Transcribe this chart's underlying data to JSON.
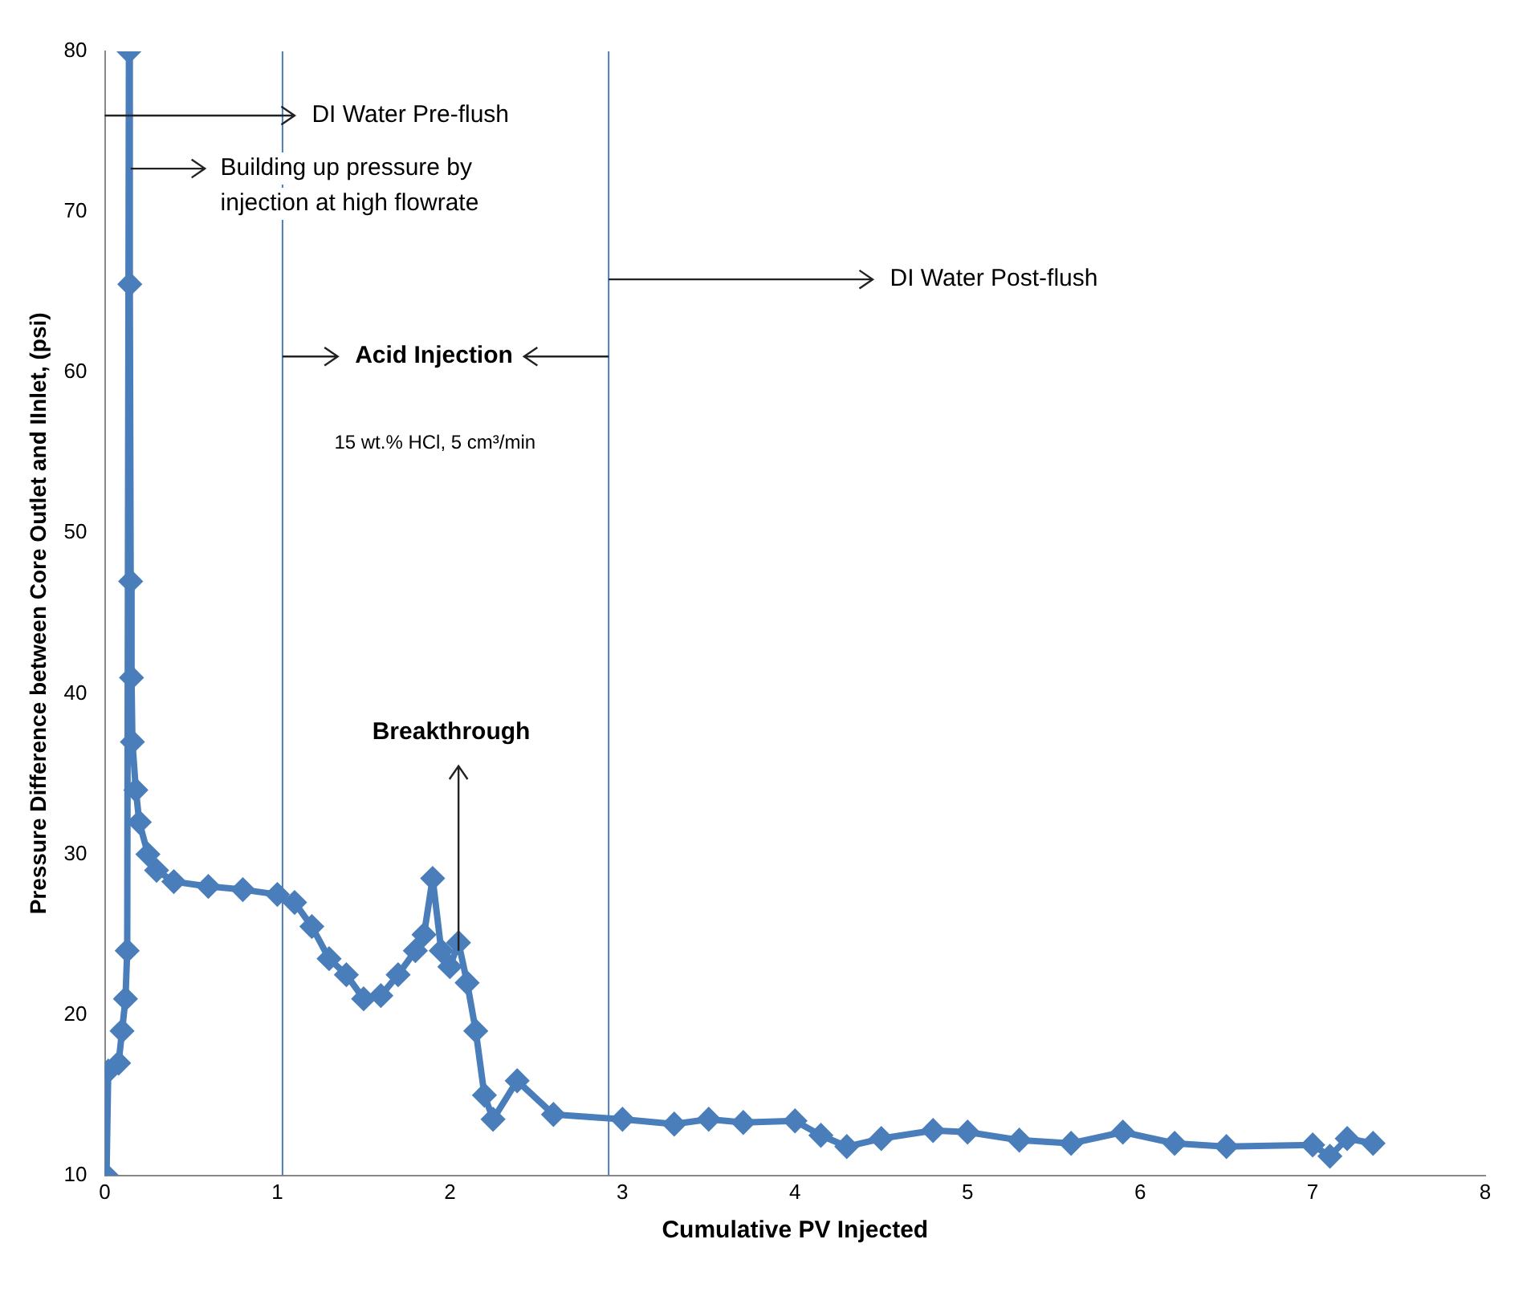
{
  "chart_data": {
    "type": "line",
    "xlabel": "Cumulative PV Injected",
    "ylabel": "Pressure Difference between Core Outlet and IInlet, (psi)",
    "xlim": [
      0,
      8
    ],
    "xticks": [
      0,
      1,
      2,
      3,
      4,
      5,
      6,
      7,
      8
    ],
    "ylim": [
      10,
      80
    ],
    "yticks": [
      10,
      20,
      30,
      40,
      50,
      60,
      70,
      80
    ],
    "grid": false,
    "legend": false,
    "marker": "diamond",
    "line_style": "solid",
    "series": [
      {
        "color": "#4a7ebb",
        "x": [
          0.01,
          0.02,
          0.08,
          0.1,
          0.12,
          0.13,
          0.14,
          0.145,
          0.15,
          0.155,
          0.16,
          0.18,
          0.2,
          0.25,
          0.3,
          0.4,
          0.6,
          0.8,
          1.0,
          1.1,
          1.2,
          1.3,
          1.4,
          1.5,
          1.6,
          1.7,
          1.8,
          1.85,
          1.9,
          1.95,
          2.0,
          2.05,
          2.1,
          2.15,
          2.2,
          2.25,
          2.39,
          2.6,
          3.0,
          3.3,
          3.5,
          3.7,
          4.0,
          4.15,
          4.3,
          4.5,
          4.8,
          5.0,
          5.3,
          5.6,
          5.9,
          6.2,
          6.5,
          7.0,
          7.1,
          7.2,
          7.35
        ],
        "values": [
          10,
          16.5,
          17,
          19,
          21,
          24,
          80,
          65.5,
          47,
          41,
          37,
          34,
          32,
          30,
          29,
          28.3,
          28,
          27.8,
          27.5,
          27,
          25.5,
          23.5,
          22.5,
          21,
          21.2,
          22.5,
          24,
          25,
          28.5,
          24,
          23,
          24.5,
          22,
          19,
          15,
          13.5,
          15.9,
          13.8,
          13.5,
          13.2,
          13.5,
          13.3,
          13.4,
          12.5,
          11.8,
          12.3,
          12.8,
          12.7,
          12.2,
          12,
          12.7,
          12,
          11.8,
          11.9,
          11.2,
          12.3,
          12
        ]
      }
    ],
    "ref_lines": [
      {
        "axis": "x",
        "value": 1.03,
        "color": "#4a7ebb"
      },
      {
        "axis": "x",
        "value": 2.92,
        "color": "#4a7ebb"
      }
    ],
    "annotations": [
      "DI Water Pre-flush",
      {
        "text": "Building up pressure by\ninjection at high flowrate",
        "x": 0.15,
        "y": 72.7
      },
      {
        "text": "Acid Injection",
        "x": 1.03,
        "y": 61
      },
      "15 wt.% HCl, 5 cm³/min",
      {
        "text": "DI Water Post-flush",
        "x": 2.92,
        "y": 65.8
      },
      {
        "text": "Breakthrough",
        "x": 2.05,
        "y": 24
      }
    ]
  }
}
